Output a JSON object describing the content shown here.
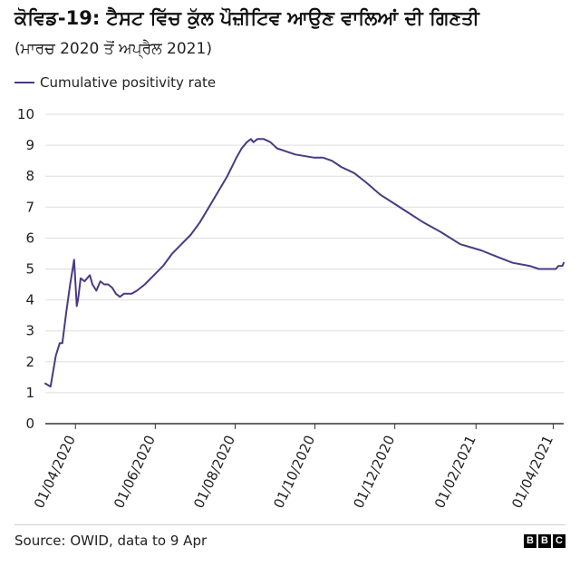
{
  "chart_data": {
    "type": "line",
    "title": "ਕੋਵਿਡ-19: ਟੈਸਟ ਵਿੱਚ ਕੁੱਲ ਪੌਜ਼ੀਟਿਵ ਆਉਣ ਵਾਲਿਆਂ ਦੀ ਗਿਣਤੀ",
    "subtitle": "(ਮਾਰਚ 2020 ਤੋਂ ਅਪ੍ਰੈਲ 2021)",
    "ylabel": "",
    "xlabel": "",
    "ylim": [
      0,
      10
    ],
    "yticks": [
      0,
      1,
      2,
      3,
      4,
      5,
      6,
      7,
      8,
      9,
      10
    ],
    "xlim": [
      "2020-03-09",
      "2021-04-09"
    ],
    "xticks": [
      "01/04/2020",
      "01/06/2020",
      "01/08/2020",
      "01/10/2020",
      "01/12/2020",
      "01/02/2021",
      "01/04/2021"
    ],
    "legend": "top-left",
    "series": [
      {
        "name": "Cumulative positivity rate",
        "color": "#4b3a82",
        "points": [
          [
            "2020-03-09",
            1.3
          ],
          [
            "2020-03-13",
            1.2
          ],
          [
            "2020-03-17",
            2.2
          ],
          [
            "2020-03-20",
            2.6
          ],
          [
            "2020-03-22",
            2.6
          ],
          [
            "2020-03-25",
            3.6
          ],
          [
            "2020-03-28",
            4.5
          ],
          [
            "2020-03-31",
            5.3
          ],
          [
            "2020-04-02",
            3.8
          ],
          [
            "2020-04-03",
            4.0
          ],
          [
            "2020-04-05",
            4.7
          ],
          [
            "2020-04-08",
            4.6
          ],
          [
            "2020-04-10",
            4.7
          ],
          [
            "2020-04-12",
            4.8
          ],
          [
            "2020-04-14",
            4.5
          ],
          [
            "2020-04-17",
            4.3
          ],
          [
            "2020-04-20",
            4.6
          ],
          [
            "2020-04-23",
            4.5
          ],
          [
            "2020-04-26",
            4.5
          ],
          [
            "2020-04-29",
            4.4
          ],
          [
            "2020-05-02",
            4.2
          ],
          [
            "2020-05-05",
            4.1
          ],
          [
            "2020-05-08",
            4.2
          ],
          [
            "2020-05-11",
            4.2
          ],
          [
            "2020-05-14",
            4.2
          ],
          [
            "2020-05-18",
            4.3
          ],
          [
            "2020-05-24",
            4.5
          ],
          [
            "2020-05-31",
            4.8
          ],
          [
            "2020-06-07",
            5.1
          ],
          [
            "2020-06-14",
            5.5
          ],
          [
            "2020-06-21",
            5.8
          ],
          [
            "2020-06-28",
            6.1
          ],
          [
            "2020-07-05",
            6.5
          ],
          [
            "2020-07-12",
            7.0
          ],
          [
            "2020-07-19",
            7.5
          ],
          [
            "2020-07-26",
            8.0
          ],
          [
            "2020-08-02",
            8.6
          ],
          [
            "2020-08-06",
            8.9
          ],
          [
            "2020-08-10",
            9.1
          ],
          [
            "2020-08-13",
            9.2
          ],
          [
            "2020-08-15",
            9.1
          ],
          [
            "2020-08-18",
            9.2
          ],
          [
            "2020-08-23",
            9.2
          ],
          [
            "2020-08-28",
            9.1
          ],
          [
            "2020-09-02",
            8.9
          ],
          [
            "2020-09-09",
            8.8
          ],
          [
            "2020-09-16",
            8.7
          ],
          [
            "2020-09-30",
            8.6
          ],
          [
            "2020-10-07",
            8.6
          ],
          [
            "2020-10-14",
            8.5
          ],
          [
            "2020-10-21",
            8.3
          ],
          [
            "2020-10-31",
            8.1
          ],
          [
            "2020-11-09",
            7.8
          ],
          [
            "2020-11-20",
            7.4
          ],
          [
            "2020-12-01",
            7.1
          ],
          [
            "2020-12-12",
            6.8
          ],
          [
            "2020-12-23",
            6.5
          ],
          [
            "2021-01-05",
            6.2
          ],
          [
            "2021-01-20",
            5.8
          ],
          [
            "2021-02-05",
            5.6
          ],
          [
            "2021-02-17",
            5.4
          ],
          [
            "2021-03-01",
            5.2
          ],
          [
            "2021-03-14",
            5.1
          ],
          [
            "2021-03-21",
            5.0
          ],
          [
            "2021-03-28",
            5.0
          ],
          [
            "2021-04-03",
            5.0
          ],
          [
            "2021-04-05",
            5.1
          ],
          [
            "2021-04-08",
            5.1
          ],
          [
            "2021-04-09",
            5.2
          ]
        ]
      }
    ]
  },
  "footer": {
    "source": "Source: OWID, data to 9 Apr",
    "brand": [
      "B",
      "B",
      "C"
    ]
  }
}
